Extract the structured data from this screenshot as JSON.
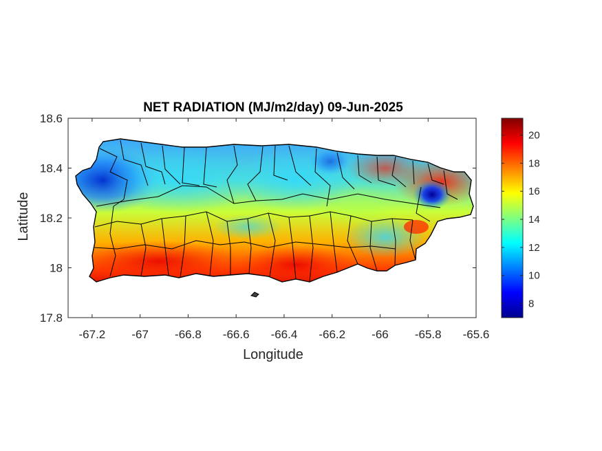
{
  "map": {
    "title": "NET RADIATION (MJ/m2/day) 09-Jun-2025",
    "xlabel": "Longitude",
    "ylabel": "Latitude",
    "xlim": [
      -67.3,
      -65.6
    ],
    "ylim": [
      17.8,
      18.6
    ],
    "xticks": [
      "-67.2",
      "-67",
      "-66.8",
      "-66.6",
      "-66.4",
      "-66.2",
      "-66",
      "-65.8",
      "-65.6"
    ],
    "xtick_values": [
      -67.2,
      -67.0,
      -66.8,
      -66.6,
      -66.4,
      -66.2,
      -66.0,
      -65.8,
      -65.6
    ],
    "yticks": [
      "17.8",
      "18",
      "18.2",
      "18.4",
      "18.6"
    ],
    "ytick_values": [
      17.8,
      18.0,
      18.2,
      18.4,
      18.6
    ],
    "colormap": "jet",
    "colorbar": {
      "range": [
        7,
        21.2
      ],
      "ticks": [
        "8",
        "10",
        "12",
        "14",
        "16",
        "18",
        "20"
      ],
      "tick_values": [
        8,
        10,
        12,
        14,
        16,
        18,
        20
      ]
    },
    "spatial_pattern": [
      {
        "region": "far west / northwest",
        "approx_value": 10
      },
      {
        "region": "north central",
        "approx_value": 13
      },
      {
        "region": "south coast",
        "approx_value": 19
      },
      {
        "region": "northeast",
        "approx_value": 18.5
      },
      {
        "region": "El Yunque (east)",
        "approx_value": 9
      }
    ]
  }
}
